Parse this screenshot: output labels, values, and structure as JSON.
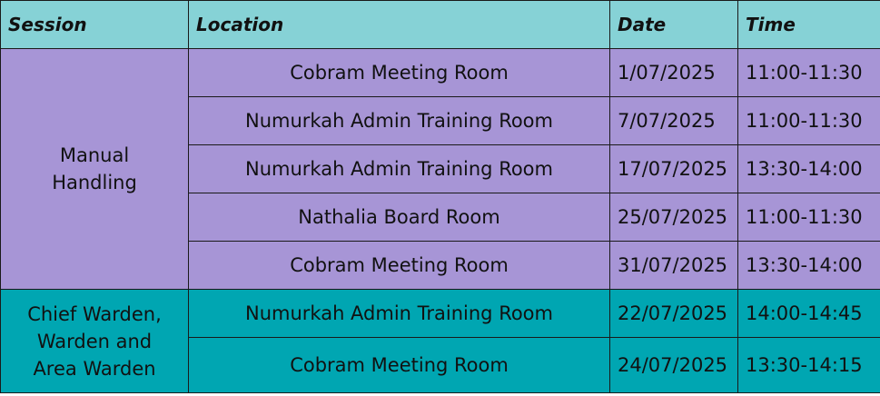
{
  "headers": {
    "session": "Session",
    "location": "Location",
    "date": "Date",
    "time": "Time"
  },
  "groups": [
    {
      "session": "Manual Handling",
      "color": "#a795d6",
      "rows": [
        {
          "location": "Cobram Meeting Room",
          "date": "1/07/2025",
          "time": "11:00-11:30"
        },
        {
          "location": "Numurkah Admin Training Room",
          "date": "7/07/2025",
          "time": "11:00-11:30"
        },
        {
          "location": "Numurkah Admin Training Room",
          "date": "17/07/2025",
          "time": "13:30-14:00"
        },
        {
          "location": "Nathalia Board Room",
          "date": "25/07/2025",
          "time": "11:00-11:30"
        },
        {
          "location": "Cobram Meeting Room",
          "date": "31/07/2025",
          "time": "13:30-14:00"
        }
      ]
    },
    {
      "session": "Chief Warden, Warden and Area Warden",
      "color": "#00a6b2",
      "rows": [
        {
          "location": "Numurkah Admin Training Room",
          "date": "22/07/2025",
          "time": "14:00-14:45"
        },
        {
          "location": "Cobram Meeting Room",
          "date": "24/07/2025",
          "time": "13:30-14:15"
        }
      ]
    }
  ],
  "header_color": "#86d2d6"
}
